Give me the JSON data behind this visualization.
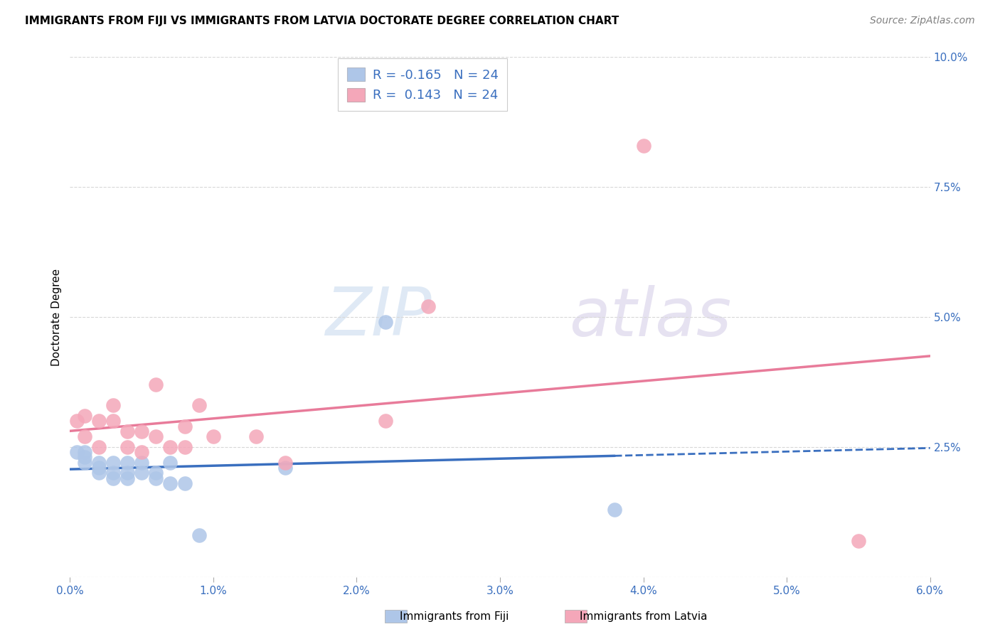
{
  "title": "IMMIGRANTS FROM FIJI VS IMMIGRANTS FROM LATVIA DOCTORATE DEGREE CORRELATION CHART",
  "source": "Source: ZipAtlas.com",
  "ylabel_label": "Doctorate Degree",
  "xlim": [
    0.0,
    0.06
  ],
  "ylim": [
    0.0,
    0.1
  ],
  "xtick_labels": [
    "0.0%",
    "1.0%",
    "2.0%",
    "3.0%",
    "4.0%",
    "5.0%",
    "6.0%"
  ],
  "xtick_vals": [
    0.0,
    0.01,
    0.02,
    0.03,
    0.04,
    0.05,
    0.06
  ],
  "ytick_labels": [
    "",
    "2.5%",
    "5.0%",
    "7.5%",
    "10.0%"
  ],
  "ytick_vals": [
    0.0,
    0.025,
    0.05,
    0.075,
    0.1
  ],
  "fiji_color": "#aec6e8",
  "latvia_color": "#f4a7b9",
  "fiji_line_color": "#3a6fbf",
  "latvia_line_color": "#e87b9a",
  "fiji_R": -0.165,
  "fiji_N": 24,
  "latvia_R": 0.143,
  "latvia_N": 24,
  "legend_fiji_label": "Immigrants from Fiji",
  "legend_latvia_label": "Immigrants from Latvia",
  "watermark_zip": "ZIP",
  "watermark_atlas": "atlas",
  "fiji_x": [
    0.0005,
    0.001,
    0.001,
    0.001,
    0.002,
    0.002,
    0.002,
    0.003,
    0.003,
    0.003,
    0.004,
    0.004,
    0.004,
    0.005,
    0.005,
    0.006,
    0.006,
    0.007,
    0.007,
    0.008,
    0.009,
    0.015,
    0.022,
    0.038
  ],
  "fiji_y": [
    0.024,
    0.024,
    0.023,
    0.022,
    0.022,
    0.021,
    0.02,
    0.022,
    0.02,
    0.019,
    0.022,
    0.02,
    0.019,
    0.022,
    0.02,
    0.02,
    0.019,
    0.018,
    0.022,
    0.018,
    0.008,
    0.021,
    0.049,
    0.013
  ],
  "latvia_x": [
    0.0005,
    0.001,
    0.001,
    0.002,
    0.002,
    0.003,
    0.003,
    0.004,
    0.004,
    0.005,
    0.005,
    0.006,
    0.006,
    0.007,
    0.008,
    0.008,
    0.009,
    0.01,
    0.013,
    0.015,
    0.022,
    0.025,
    0.04,
    0.055
  ],
  "latvia_y": [
    0.03,
    0.031,
    0.027,
    0.03,
    0.025,
    0.033,
    0.03,
    0.028,
    0.025,
    0.028,
    0.024,
    0.037,
    0.027,
    0.025,
    0.029,
    0.025,
    0.033,
    0.027,
    0.027,
    0.022,
    0.03,
    0.052,
    0.083,
    0.007
  ],
  "background_color": "#ffffff",
  "grid_color": "#d8d8d8",
  "tick_color": "#3a6fbf",
  "title_fontsize": 11,
  "source_fontsize": 10,
  "tick_fontsize": 11,
  "legend_fontsize": 13,
  "ylabel_fontsize": 11
}
